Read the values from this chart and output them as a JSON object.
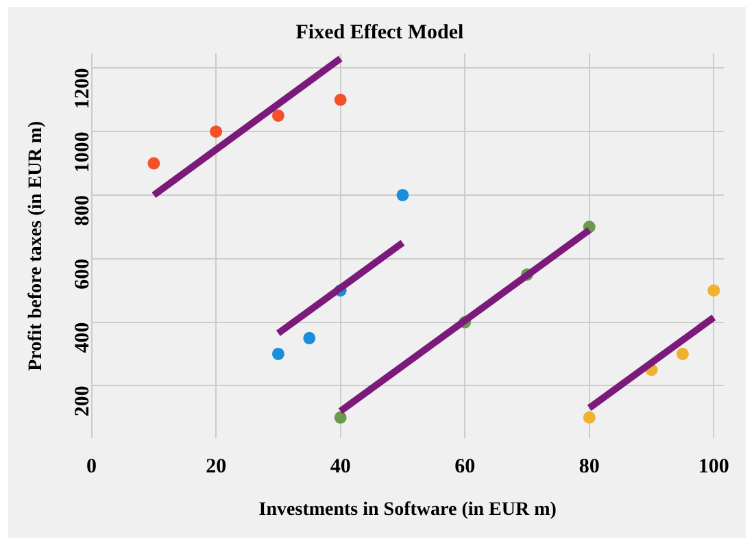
{
  "chart_data": {
    "type": "scatter",
    "title": "Fixed Effect Model",
    "xlabel": "Investments in Software (in EUR m)",
    "ylabel": "Profit before taxes (in EUR m)",
    "xlim": [
      0,
      101.6
    ],
    "xticks": [
      0,
      20,
      40,
      60,
      80,
      100
    ],
    "ylim": [
      34,
      1246
    ],
    "yticks": [
      200,
      400,
      600,
      800,
      1000,
      1200
    ],
    "grid": true,
    "legend": false,
    "marker": "circle",
    "series": [
      {
        "color": "#f4502a",
        "x": [
          10,
          20,
          30,
          40
        ],
        "values": [
          900,
          1000,
          1050,
          1100
        ]
      },
      {
        "color": "#1a8fd9",
        "x": [
          30,
          35,
          40,
          50
        ],
        "values": [
          300,
          350,
          500,
          800
        ]
      },
      {
        "color": "#6a9a4a",
        "x": [
          40,
          60,
          70,
          80
        ],
        "values": [
          100,
          400,
          550,
          700
        ]
      },
      {
        "color": "#f0b030",
        "x": [
          80,
          90,
          95,
          100
        ],
        "values": [
          100,
          250,
          300,
          500
        ]
      },
      {
        "type": "line",
        "color": "#7b1a7b",
        "marker": "none",
        "x": [
          10,
          40
        ],
        "values": [
          800,
          1230
        ]
      },
      {
        "type": "line",
        "color": "#7b1a7b",
        "marker": "none",
        "x": [
          30,
          50
        ],
        "values": [
          365,
          650
        ]
      },
      {
        "type": "line",
        "color": "#7b1a7b",
        "marker": "none",
        "x": [
          40,
          80
        ],
        "values": [
          120,
          690
        ]
      },
      {
        "type": "line",
        "color": "#7b1a7b",
        "marker": "none",
        "x": [
          80,
          100
        ],
        "values": [
          130,
          415
        ]
      }
    ]
  }
}
